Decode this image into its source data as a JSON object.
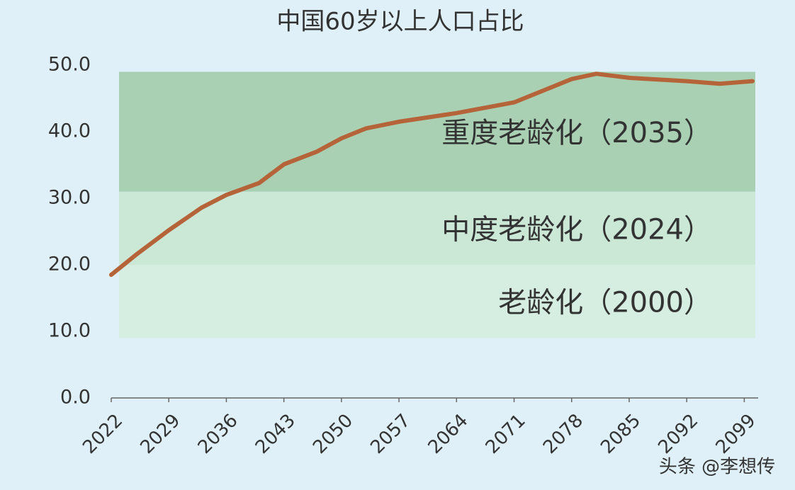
{
  "chart_data": {
    "type": "line",
    "title": "中国60岁以上人口占比",
    "x": [
      2022,
      2025,
      2029,
      2033,
      2036,
      2040,
      2043,
      2047,
      2050,
      2053,
      2057,
      2064,
      2071,
      2078,
      2081,
      2085,
      2092,
      2096,
      2100
    ],
    "values": [
      18.5,
      21.5,
      25.2,
      28.6,
      30.5,
      32.3,
      35.1,
      37.0,
      39.0,
      40.5,
      41.5,
      42.8,
      44.4,
      47.9,
      48.7,
      48.1,
      47.6,
      47.2,
      47.6
    ],
    "color": "#b5643a",
    "xlim": [
      2022,
      2100
    ],
    "xticks": [
      2022,
      2029,
      2036,
      2043,
      2050,
      2057,
      2064,
      2071,
      2078,
      2085,
      2092,
      2099
    ],
    "ylim": [
      0,
      50
    ],
    "yticks": [
      {
        "value": 0,
        "label": "0.0"
      },
      {
        "value": 10,
        "label": "10.0"
      },
      {
        "value": 20,
        "label": "20.0"
      },
      {
        "value": 30,
        "label": "30.0"
      },
      {
        "value": 40,
        "label": "40.0"
      },
      {
        "value": 50,
        "label": "50.0"
      }
    ],
    "bands": [
      {
        "label": "老龄化（2000）",
        "range": [
          9,
          20
        ],
        "color": "#d6ede2"
      },
      {
        "label": "中度老龄化（2024）",
        "range": [
          20,
          31
        ],
        "color": "#cbe7d6"
      },
      {
        "label": "重度老龄化（2035）",
        "range": [
          31,
          49
        ],
        "color": "#a9d0b3"
      }
    ],
    "watermark": "头条 @李想传"
  }
}
